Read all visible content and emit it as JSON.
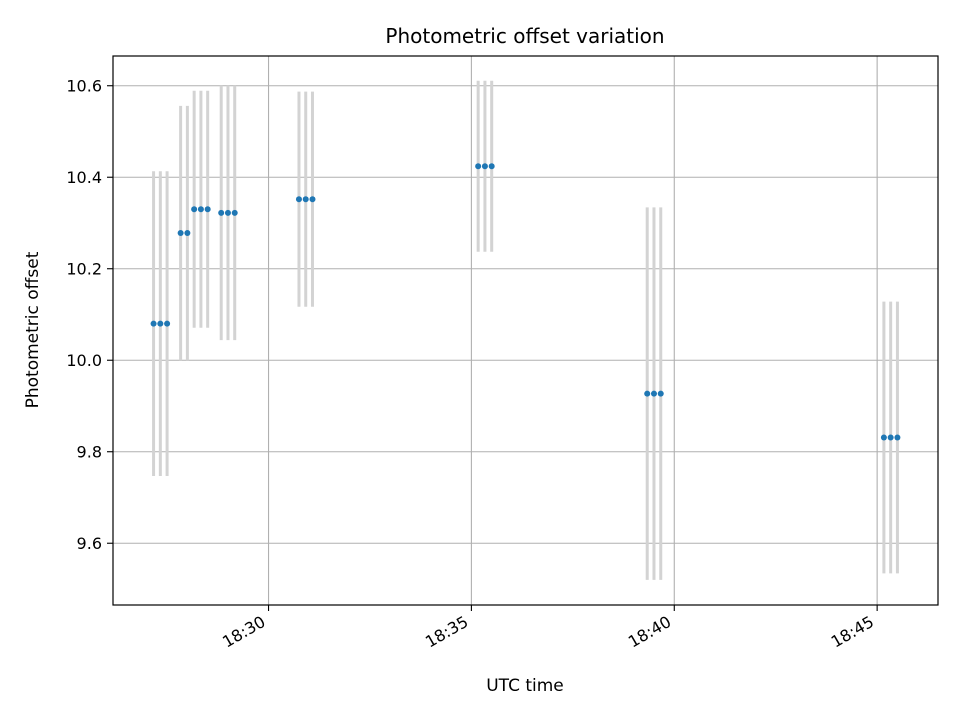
{
  "chart_data": {
    "type": "scatter",
    "title": "Photometric offset variation",
    "xlabel": "UTC time",
    "ylabel": "Photometric offset",
    "x_axis": "time (HH:MM, UTC)",
    "xlim": [
      "18:26:10",
      "18:46:30"
    ],
    "ylim": [
      9.465,
      10.665
    ],
    "x_ticks": [
      "18:30",
      "18:35",
      "18:40",
      "18:45"
    ],
    "y_ticks": [
      9.6,
      9.8,
      10.0,
      10.2,
      10.4,
      10.6
    ],
    "y_tick_labels": [
      "9.6",
      "9.8",
      "10.0",
      "10.2",
      "10.4",
      "10.6"
    ],
    "grid": true,
    "colors": {
      "point": "#1f77b4",
      "errorbar": "#d3d3d3",
      "grid": "#b0b0b0",
      "axes": "#000000"
    },
    "series": [
      {
        "points": [
          {
            "x": "18:27:10",
            "y": 10.08,
            "yerr": 0.333
          },
          {
            "x": "18:27:20",
            "y": 10.08,
            "yerr": 0.333
          },
          {
            "x": "18:27:30",
            "y": 10.08,
            "yerr": 0.333
          },
          {
            "x": "18:27:50",
            "y": 10.278,
            "yerr": 0.278
          },
          {
            "x": "18:28:00",
            "y": 10.278,
            "yerr": 0.278
          },
          {
            "x": "18:28:10",
            "y": 10.33,
            "yerr": 0.259
          },
          {
            "x": "18:28:20",
            "y": 10.33,
            "yerr": 0.259
          },
          {
            "x": "18:28:30",
            "y": 10.33,
            "yerr": 0.259
          },
          {
            "x": "18:28:50",
            "y": 10.322,
            "yerr": 0.278
          },
          {
            "x": "18:29:00",
            "y": 10.322,
            "yerr": 0.278
          },
          {
            "x": "18:29:10",
            "y": 10.322,
            "yerr": 0.278
          },
          {
            "x": "18:30:45",
            "y": 10.352,
            "yerr": 0.235
          },
          {
            "x": "18:30:55",
            "y": 10.352,
            "yerr": 0.235
          },
          {
            "x": "18:31:05",
            "y": 10.352,
            "yerr": 0.235
          },
          {
            "x": "18:35:10",
            "y": 10.424,
            "yerr": 0.187
          },
          {
            "x": "18:35:20",
            "y": 10.424,
            "yerr": 0.187
          },
          {
            "x": "18:35:30",
            "y": 10.424,
            "yerr": 0.187
          },
          {
            "x": "18:39:20",
            "y": 9.927,
            "yerr": 0.407
          },
          {
            "x": "18:39:30",
            "y": 9.927,
            "yerr": 0.407
          },
          {
            "x": "18:39:40",
            "y": 9.927,
            "yerr": 0.407
          },
          {
            "x": "18:45:10",
            "y": 9.831,
            "yerr": 0.297
          },
          {
            "x": "18:45:20",
            "y": 9.831,
            "yerr": 0.297
          },
          {
            "x": "18:45:30",
            "y": 9.831,
            "yerr": 0.297
          }
        ]
      }
    ]
  }
}
